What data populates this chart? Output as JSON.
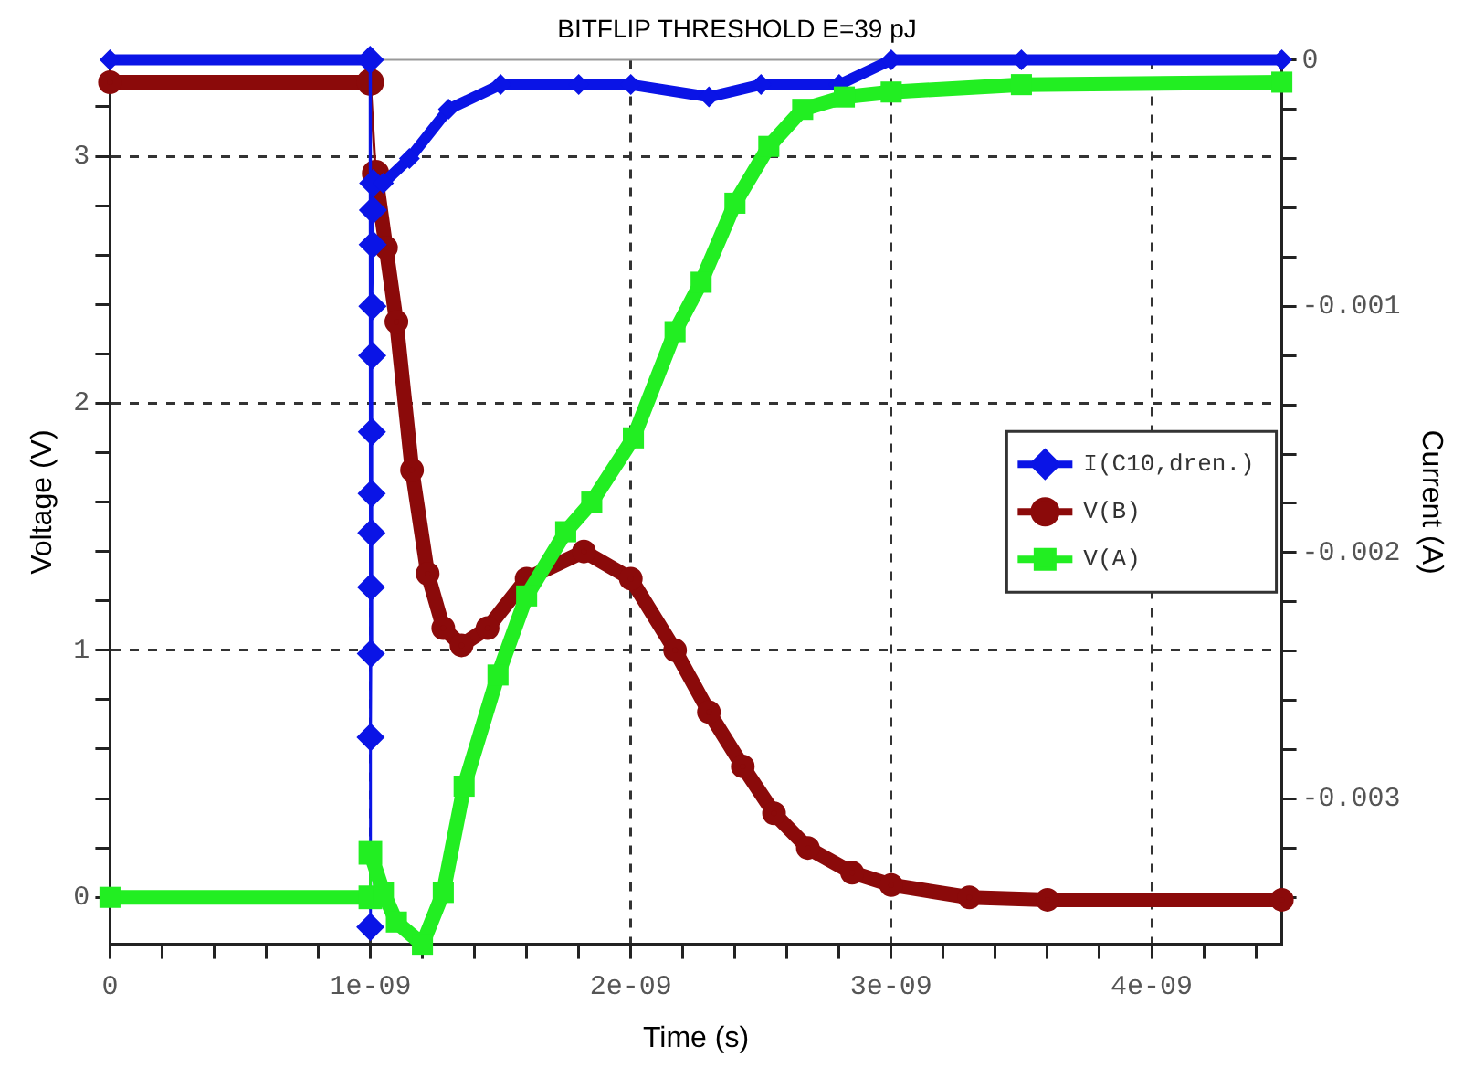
{
  "chart_data": {
    "type": "line",
    "title": "BITFLIP THRESHOLD E=39 pJ",
    "xlabel": "Time (s)",
    "ylabel": "Voltage (V)",
    "y2label": "Current (A)",
    "xlim": [
      0,
      4.5e-09
    ],
    "xticks": [
      0,
      {
        "value": 2e-10,
        "label": null
      },
      {
        "value": 4e-10,
        "label": null
      },
      {
        "value": 6e-10,
        "label": null
      },
      {
        "value": 8e-10,
        "label": null
      },
      {
        "value": 1e-09,
        "label": "1e-09"
      },
      {
        "value": 1.2e-09,
        "label": null
      },
      {
        "value": 1.4e-09,
        "label": null
      },
      {
        "value": 1.6e-09,
        "label": null
      },
      {
        "value": 1.8e-09,
        "label": null
      },
      {
        "value": 2e-09,
        "label": "2e-09"
      },
      {
        "value": 2.2e-09,
        "label": null
      },
      {
        "value": 2.4e-09,
        "label": null
      },
      {
        "value": 2.6e-09,
        "label": null
      },
      {
        "value": 2.8e-09,
        "label": null
      },
      {
        "value": 3e-09,
        "label": "3e-09"
      },
      {
        "value": 3.2e-09,
        "label": null
      },
      {
        "value": 3.4e-09,
        "label": null
      },
      {
        "value": 3.6e-09,
        "label": null
      },
      {
        "value": 3.8e-09,
        "label": null
      },
      {
        "value": 4e-09,
        "label": "4e-09"
      },
      {
        "value": 4.2e-09,
        "label": null
      },
      {
        "value": 4.4e-09,
        "label": null
      }
    ],
    "ylim": [
      -0.19,
      3.39
    ],
    "yticks": [
      0,
      {
        "value": 0.2,
        "label": null
      },
      {
        "value": 0.4,
        "label": null
      },
      {
        "value": 0.6,
        "label": null
      },
      {
        "value": 0.8,
        "label": null
      },
      1,
      {
        "value": 1.2,
        "label": null
      },
      {
        "value": 1.4,
        "label": null
      },
      {
        "value": 1.6,
        "label": null
      },
      {
        "value": 1.8,
        "label": null
      },
      2,
      {
        "value": 2.2,
        "label": null
      },
      {
        "value": 2.4,
        "label": null
      },
      {
        "value": 2.6,
        "label": null
      },
      {
        "value": 2.8,
        "label": null
      },
      3,
      {
        "value": 3.2,
        "label": null
      }
    ],
    "y2lim": [
      -0.00359,
      0
    ],
    "y2ticks": [
      0,
      {
        "value": -0.0002,
        "label": null
      },
      {
        "value": -0.0004,
        "label": null
      },
      {
        "value": -0.0006,
        "label": null
      },
      {
        "value": -0.0008,
        "label": null
      },
      -0.001,
      {
        "value": -0.0012,
        "label": null
      },
      {
        "value": -0.0014,
        "label": null
      },
      {
        "value": -0.0016,
        "label": null
      },
      {
        "value": -0.0018,
        "label": null
      },
      -0.002,
      {
        "value": -0.0022,
        "label": null
      },
      {
        "value": -0.0024,
        "label": null
      },
      {
        "value": -0.0026,
        "label": null
      },
      {
        "value": -0.0028,
        "label": null
      },
      -0.003,
      {
        "value": -0.0032,
        "label": null
      },
      {
        "value": -0.0034,
        "label": null
      }
    ],
    "grid": true,
    "legend": "right",
    "line_style": "solid",
    "series": [
      {
        "name": "I(C10,dren.)",
        "color": "#0a14e6",
        "axis": "y2",
        "marker": "diamond",
        "x": [
          0,
          9.99e-10,
          1e-09,
          1.001e-09,
          1.002e-09,
          1.003e-09,
          1.004e-09,
          1.005e-09,
          1.006e-09,
          1.007e-09,
          1.008e-09,
          1.009e-09,
          1.01e-09,
          1.011e-09,
          1.05e-09,
          1.15e-09,
          1.3e-09,
          1.5e-09,
          1.8e-09,
          2e-09,
          2.3e-09,
          2.5e-09,
          2.8e-09,
          3e-09,
          3.5e-09,
          4.5e-09
        ],
        "values": [
          0,
          0,
          -0.00352,
          -0.00275,
          -0.00241,
          -0.00214,
          -0.00192,
          -0.00176,
          -0.00151,
          -0.0012,
          -0.001,
          -0.00075,
          -0.00061,
          -0.0005,
          -0.0005,
          -0.0004,
          -0.0002,
          -0.0001,
          -0.0001,
          -0.0001,
          -0.00015,
          -0.0001,
          -0.0001,
          0,
          0,
          0
        ]
      },
      {
        "name": "V(B)",
        "color": "#8b0a0a",
        "marker": "circle",
        "x": [
          0,
          1e-09,
          1.02e-09,
          1.06e-09,
          1.1e-09,
          1.16e-09,
          1.22e-09,
          1.28e-09,
          1.35e-09,
          1.45e-09,
          1.6e-09,
          1.82e-09,
          2e-09,
          2.17e-09,
          2.3e-09,
          2.43e-09,
          2.55e-09,
          2.68e-09,
          2.85e-09,
          3e-09,
          3.3e-09,
          3.6e-09,
          4.5e-09
        ],
        "values": [
          3.3,
          3.3,
          2.93,
          2.63,
          2.33,
          1.73,
          1.31,
          1.09,
          1.02,
          1.09,
          1.29,
          1.4,
          1.29,
          1.0,
          0.75,
          0.53,
          0.34,
          0.2,
          0.1,
          0.05,
          0.0,
          -0.01,
          -0.01
        ]
      },
      {
        "name": "V(A)",
        "color": "#22ee22",
        "marker": "square",
        "x": [
          0,
          1e-09,
          1e-09,
          1.05e-09,
          1.1e-09,
          1.2e-09,
          1.28e-09,
          1.36e-09,
          1.49e-09,
          1.6e-09,
          1.75e-09,
          1.85e-09,
          2.01e-09,
          2.17e-09,
          2.27e-09,
          2.4e-09,
          2.53e-09,
          2.66e-09,
          2.82e-09,
          3e-09,
          3.5e-09,
          4.5e-09
        ],
        "values": [
          0,
          0,
          0.18,
          0.02,
          -0.1,
          -0.19,
          0.02,
          0.45,
          0.9,
          1.22,
          1.48,
          1.6,
          1.86,
          2.29,
          2.49,
          2.81,
          3.04,
          3.19,
          3.24,
          3.26,
          3.29,
          3.3
        ]
      }
    ]
  }
}
